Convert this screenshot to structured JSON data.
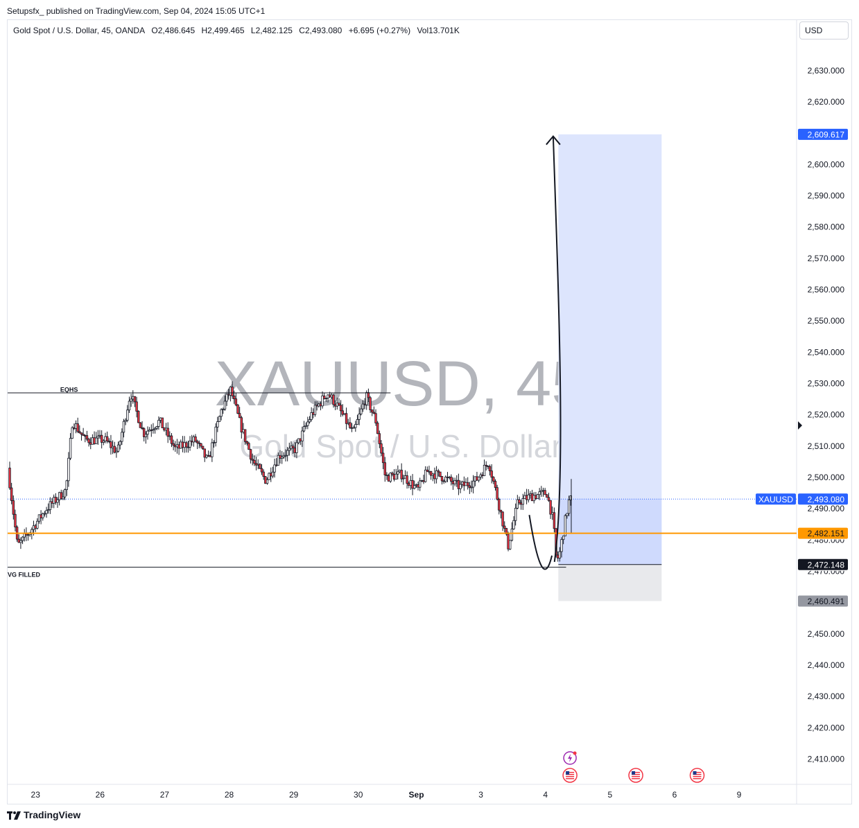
{
  "header": {
    "published_line": "Setupsfx_ published on TradingView.com, Sep 04, 2024 15:05 UTC+1"
  },
  "legend": {
    "symbol_desc": "Gold Spot / U.S. Dollar, 45, OANDA",
    "open": "O2,486.645",
    "high": "H2,499.465",
    "low": "L2,482.125",
    "close": "C2,493.080",
    "change": "+6.695 (+0.27%)",
    "volume": "Vol13.701K"
  },
  "currency_button": "USD",
  "watermark": {
    "line1": "XAUUSD, 45",
    "line2": "Gold Spot / U.S. Dollar"
  },
  "footer": {
    "brand": "TradingView"
  },
  "colors": {
    "bull": "#089981",
    "bear": "#f23645",
    "candle": "#131722",
    "accent_blue": "#2962ff",
    "orange": "#ff9800",
    "profit_zone": "#c9d6fc",
    "stop_zone": "#e8e9ec",
    "gray_label": "#9598a1",
    "dark_label": "#131722"
  },
  "chart_data": {
    "type": "candlestick",
    "symbol": "XAUUSD",
    "timeframe": "45",
    "ylim": [
      2400,
      2640
    ],
    "y_ticks": [
      2410,
      2420,
      2430,
      2440,
      2450,
      2460,
      2470,
      2480,
      2490,
      2500,
      2510,
      2520,
      2530,
      2540,
      2550,
      2560,
      2570,
      2580,
      2590,
      2600,
      2610,
      2620,
      2630
    ],
    "y_tick_labels": [
      "2,410.000",
      "2,420.000",
      "2,430.000",
      "2,440.000",
      "2,450.000",
      "2,460.000",
      "2,470.000",
      "2,480.000",
      "2,490.000",
      "2,500.000",
      "2,510.000",
      "2,520.000",
      "2,530.000",
      "2,540.000",
      "2,550.000",
      "2,560.000",
      "2,570.000",
      "2,580.000",
      "2,590.000",
      "2,600.000",
      "2,610.000",
      "2,620.000",
      "2,630.000"
    ],
    "x_ticks": [
      {
        "label": "23",
        "day": 0.4
      },
      {
        "label": "26",
        "day": 1.4
      },
      {
        "label": "27",
        "day": 2.4
      },
      {
        "label": "28",
        "day": 3.4
      },
      {
        "label": "29",
        "day": 4.4
      },
      {
        "label": "30",
        "day": 5.4
      },
      {
        "label": "Sep",
        "day": 6.3
      },
      {
        "label": "3",
        "day": 7.3
      },
      {
        "label": "4",
        "day": 8.3
      },
      {
        "label": "5",
        "day": 9.3
      },
      {
        "label": "6",
        "day": 10.3
      },
      {
        "label": "9",
        "day": 11.3
      }
    ],
    "price_path": [
      [
        0.0,
        2503
      ],
      [
        0.15,
        2478
      ],
      [
        0.35,
        2483
      ],
      [
        0.6,
        2490
      ],
      [
        0.9,
        2496
      ],
      [
        1.0,
        2518
      ],
      [
        1.2,
        2512
      ],
      [
        1.5,
        2512
      ],
      [
        1.7,
        2508
      ],
      [
        1.9,
        2527
      ],
      [
        2.1,
        2514
      ],
      [
        2.35,
        2518
      ],
      [
        2.6,
        2509
      ],
      [
        2.9,
        2512
      ],
      [
        3.1,
        2505
      ],
      [
        3.3,
        2521
      ],
      [
        3.45,
        2528
      ],
      [
        3.6,
        2517
      ],
      [
        3.8,
        2505
      ],
      [
        4.0,
        2499
      ],
      [
        4.2,
        2507
      ],
      [
        4.45,
        2509
      ],
      [
        4.7,
        2520
      ],
      [
        4.95,
        2527
      ],
      [
        5.1,
        2523
      ],
      [
        5.35,
        2514
      ],
      [
        5.55,
        2526
      ],
      [
        5.7,
        2518
      ],
      [
        5.85,
        2500
      ],
      [
        6.1,
        2501
      ],
      [
        6.35,
        2496
      ],
      [
        6.5,
        2502
      ],
      [
        6.75,
        2500
      ],
      [
        7.0,
        2497
      ],
      [
        7.25,
        2499
      ],
      [
        7.45,
        2505
      ],
      [
        7.6,
        2492
      ],
      [
        7.75,
        2478
      ],
      [
        7.9,
        2492
      ],
      [
        8.1,
        2494
      ],
      [
        8.35,
        2495
      ],
      [
        8.45,
        2486
      ],
      [
        8.5,
        2473
      ],
      [
        8.55,
        2476
      ],
      [
        8.65,
        2488
      ],
      [
        8.7,
        2493
      ]
    ],
    "eqhs_price": 2527,
    "fvg_filled_price": 2471.3,
    "current_price": 2493.08,
    "entry_price": 2482.151,
    "target_price": 2609.617,
    "stop_price": 2460.491,
    "position_mid_price": 2472.148,
    "price_labels": {
      "target": "2,609.617",
      "current": "2,493.080",
      "entry": "2,482.151",
      "mid": "2,472.148",
      "stop": "2,460.491",
      "symbol_tag": "XAUUSD"
    },
    "annotations": {
      "eqhs": "EQHS",
      "fvg_filled": "VG FILLED"
    },
    "position_tool": {
      "type": "long",
      "start_day": 8.5,
      "end_day": 10.1
    },
    "event_day": 8.68,
    "us_flag_days": [
      8.68,
      9.7,
      10.65
    ]
  }
}
